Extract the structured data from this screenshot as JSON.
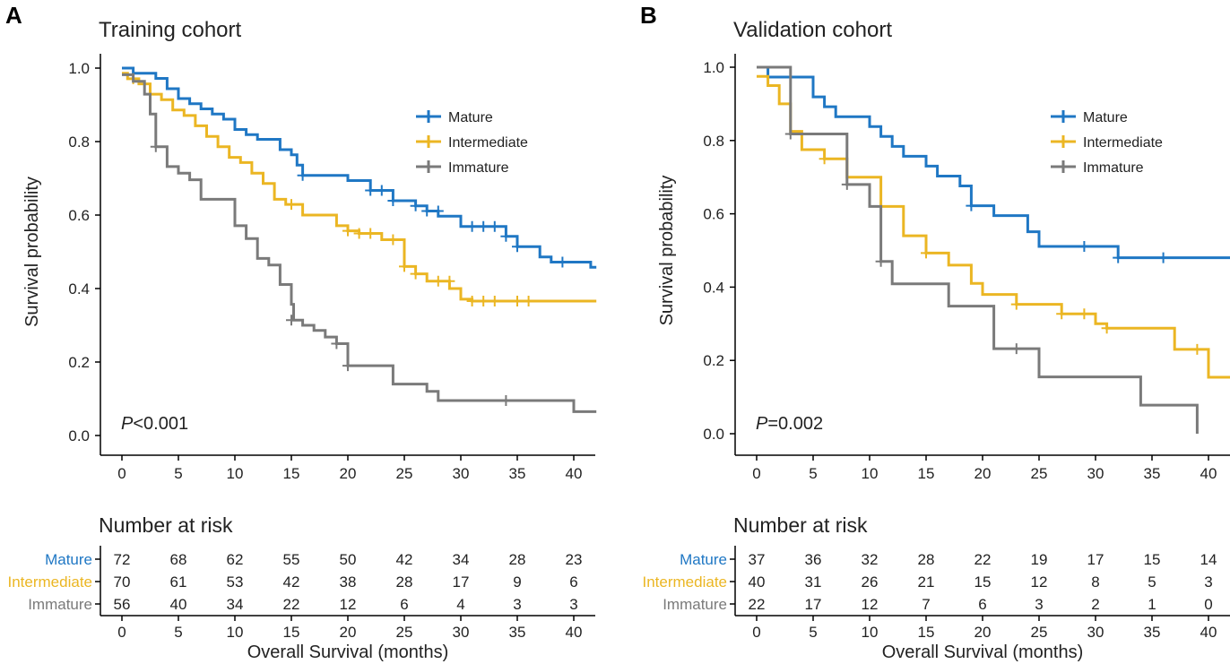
{
  "colors": {
    "mature": "#1f77c4",
    "intermediate": "#ebb623",
    "immature": "#7a7a7a",
    "axis": "#000000"
  },
  "panel_labels": [
    "A",
    "B"
  ],
  "risk_title": "Number at risk",
  "y_axis_label": "Survival probability",
  "x_axis_label": "Overall Survival (months)",
  "chart_data": [
    {
      "type": "line",
      "subtype": "kaplan-meier step",
      "panel": "A",
      "title": "Training cohort",
      "xlabel": "Overall Survival (months)",
      "ylabel": "Survival probability",
      "xlim": [
        0,
        42
      ],
      "ylim": [
        0,
        1.0
      ],
      "xticks": [
        "0",
        "5",
        "10",
        "15",
        "20",
        "25",
        "30",
        "35",
        "40"
      ],
      "yticks": [
        "0.0",
        "0.2",
        "0.4",
        "0.6",
        "0.8",
        "1.0"
      ],
      "legend": [
        "Mature",
        "Intermediate",
        "Immature"
      ],
      "legend_position": "top-right",
      "annotation": {
        "prefix": "P",
        "text": "<0.001"
      },
      "series": [
        {
          "name": "Mature",
          "color": "#1f77c4",
          "steps": [
            [
              0,
              1.0
            ],
            [
              1,
              0.986
            ],
            [
              3,
              0.972
            ],
            [
              4,
              0.944
            ],
            [
              5,
              0.917
            ],
            [
              6,
              0.903
            ],
            [
              7,
              0.889
            ],
            [
              8,
              0.875
            ],
            [
              9,
              0.861
            ],
            [
              10,
              0.833
            ],
            [
              11,
              0.819
            ],
            [
              12,
              0.806
            ],
            [
              14,
              0.778
            ],
            [
              15,
              0.764
            ],
            [
              15.5,
              0.736
            ],
            [
              16,
              0.708
            ],
            [
              20,
              0.694
            ],
            [
              22,
              0.667
            ],
            [
              24,
              0.639
            ],
            [
              26,
              0.625
            ],
            [
              27,
              0.611
            ],
            [
              28,
              0.597
            ],
            [
              30,
              0.569
            ],
            [
              34,
              0.542
            ],
            [
              35,
              0.514
            ],
            [
              37,
              0.486
            ],
            [
              38,
              0.472
            ],
            [
              41.5,
              0.458
            ]
          ],
          "end": 42,
          "censors": [
            [
              16,
              0.708
            ],
            [
              22,
              0.667
            ],
            [
              23,
              0.667
            ],
            [
              24,
              0.639
            ],
            [
              26,
              0.625
            ],
            [
              27,
              0.611
            ],
            [
              28,
              0.611
            ],
            [
              31,
              0.569
            ],
            [
              32,
              0.569
            ],
            [
              33,
              0.569
            ],
            [
              34,
              0.542
            ],
            [
              35,
              0.514
            ],
            [
              39,
              0.472
            ]
          ]
        },
        {
          "name": "Intermediate",
          "color": "#ebb623",
          "steps": [
            [
              0,
              0.986
            ],
            [
              0.5,
              0.971
            ],
            [
              1.5,
              0.957
            ],
            [
              2.5,
              0.929
            ],
            [
              3.5,
              0.914
            ],
            [
              4.5,
              0.886
            ],
            [
              5.5,
              0.871
            ],
            [
              6.5,
              0.843
            ],
            [
              7.5,
              0.814
            ],
            [
              8.5,
              0.786
            ],
            [
              9.5,
              0.757
            ],
            [
              10.5,
              0.743
            ],
            [
              11.5,
              0.714
            ],
            [
              12.5,
              0.686
            ],
            [
              13.5,
              0.643
            ],
            [
              14.5,
              0.629
            ],
            [
              16,
              0.6
            ],
            [
              19,
              0.571
            ],
            [
              20,
              0.557
            ],
            [
              21,
              0.55
            ],
            [
              23,
              0.533
            ],
            [
              25,
              0.46
            ],
            [
              26,
              0.44
            ],
            [
              27,
              0.42
            ],
            [
              29,
              0.4
            ],
            [
              30,
              0.371
            ],
            [
              31,
              0.366
            ]
          ],
          "end": 42,
          "censors": [
            [
              1,
              0.971
            ],
            [
              15,
              0.629
            ],
            [
              20,
              0.557
            ],
            [
              21,
              0.55
            ],
            [
              22,
              0.55
            ],
            [
              24,
              0.533
            ],
            [
              25,
              0.46
            ],
            [
              26,
              0.44
            ],
            [
              28,
              0.42
            ],
            [
              29,
              0.42
            ],
            [
              31,
              0.366
            ],
            [
              32,
              0.366
            ],
            [
              33,
              0.366
            ],
            [
              35,
              0.366
            ],
            [
              36,
              0.366
            ]
          ]
        },
        {
          "name": "Immature",
          "color": "#7a7a7a",
          "steps": [
            [
              0,
              0.982
            ],
            [
              1,
              0.964
            ],
            [
              2,
              0.929
            ],
            [
              2.5,
              0.875
            ],
            [
              3,
              0.786
            ],
            [
              4,
              0.732
            ],
            [
              5,
              0.714
            ],
            [
              6,
              0.696
            ],
            [
              7,
              0.643
            ],
            [
              10,
              0.571
            ],
            [
              11,
              0.536
            ],
            [
              12,
              0.482
            ],
            [
              13,
              0.464
            ],
            [
              14,
              0.411
            ],
            [
              15,
              0.357
            ],
            [
              15.2,
              0.314
            ],
            [
              16,
              0.3
            ],
            [
              17,
              0.286
            ],
            [
              18,
              0.268
            ],
            [
              19,
              0.25
            ],
            [
              20,
              0.19
            ],
            [
              24,
              0.14
            ],
            [
              27,
              0.12
            ],
            [
              28,
              0.095
            ],
            [
              40,
              0.065
            ]
          ],
          "end": 42,
          "censors": [
            [
              3,
              0.786
            ],
            [
              15,
              0.314
            ],
            [
              19,
              0.25
            ],
            [
              20,
              0.19
            ],
            [
              34,
              0.095
            ]
          ]
        }
      ],
      "risk_table": {
        "time_points": [
          "0",
          "5",
          "10",
          "15",
          "20",
          "25",
          "30",
          "35",
          "40"
        ],
        "rows": [
          {
            "label": "Mature",
            "color": "#1f77c4",
            "values": [
              "72",
              "68",
              "62",
              "55",
              "50",
              "42",
              "34",
              "28",
              "23"
            ]
          },
          {
            "label": "Intermediate",
            "color": "#ebb623",
            "values": [
              "70",
              "61",
              "53",
              "42",
              "38",
              "28",
              "17",
              "9",
              "6"
            ]
          },
          {
            "label": "Immature",
            "color": "#7a7a7a",
            "values": [
              "56",
              "40",
              "34",
              "22",
              "12",
              "6",
              "4",
              "3",
              "3"
            ]
          }
        ]
      }
    },
    {
      "type": "line",
      "subtype": "kaplan-meier step",
      "panel": "B",
      "title": "Validation cohort",
      "xlabel": "Overall Survival (months)",
      "ylabel": "Survival probability",
      "xlim": [
        0,
        42
      ],
      "ylim": [
        0,
        1.0
      ],
      "xticks": [
        "0",
        "5",
        "10",
        "15",
        "20",
        "25",
        "30",
        "35",
        "40"
      ],
      "yticks": [
        "0.0",
        "0.2",
        "0.4",
        "0.6",
        "0.8",
        "1.0"
      ],
      "legend": [
        "Mature",
        "Intermediate",
        "Immature"
      ],
      "legend_position": "top-right",
      "annotation": {
        "prefix": "P",
        "text": "=0.002"
      },
      "series": [
        {
          "name": "Mature",
          "color": "#1f77c4",
          "steps": [
            [
              0,
              1.0
            ],
            [
              1,
              0.973
            ],
            [
              5,
              0.919
            ],
            [
              6,
              0.892
            ],
            [
              7,
              0.865
            ],
            [
              10,
              0.838
            ],
            [
              11,
              0.811
            ],
            [
              12,
              0.784
            ],
            [
              13,
              0.757
            ],
            [
              15,
              0.73
            ],
            [
              16,
              0.703
            ],
            [
              18,
              0.676
            ],
            [
              19,
              0.622
            ],
            [
              21,
              0.595
            ],
            [
              24,
              0.551
            ],
            [
              25,
              0.511
            ],
            [
              32,
              0.48
            ]
          ],
          "end": 42,
          "censors": [
            [
              19,
              0.622
            ],
            [
              29,
              0.511
            ],
            [
              32,
              0.48
            ],
            [
              36,
              0.48
            ]
          ]
        },
        {
          "name": "Intermediate",
          "color": "#ebb623",
          "steps": [
            [
              0,
              0.975
            ],
            [
              1,
              0.95
            ],
            [
              2,
              0.9
            ],
            [
              3,
              0.825
            ],
            [
              4,
              0.775
            ],
            [
              6,
              0.75
            ],
            [
              8,
              0.7
            ],
            [
              11,
              0.62
            ],
            [
              13,
              0.54
            ],
            [
              15,
              0.493
            ],
            [
              17,
              0.46
            ],
            [
              19,
              0.41
            ],
            [
              20,
              0.38
            ],
            [
              23,
              0.353
            ],
            [
              27,
              0.327
            ],
            [
              30,
              0.3
            ],
            [
              31,
              0.288
            ],
            [
              37,
              0.23
            ],
            [
              40,
              0.154
            ]
          ],
          "end": 42,
          "censors": [
            [
              6,
              0.75
            ],
            [
              15,
              0.493
            ],
            [
              23,
              0.353
            ],
            [
              27,
              0.327
            ],
            [
              29,
              0.327
            ],
            [
              31,
              0.288
            ],
            [
              39,
              0.23
            ],
            [
              42,
              0.154
            ]
          ]
        },
        {
          "name": "Immature",
          "color": "#7a7a7a",
          "steps": [
            [
              0,
              1.0
            ],
            [
              3,
              0.818
            ],
            [
              8,
              0.68
            ],
            [
              10,
              0.62
            ],
            [
              11,
              0.47
            ],
            [
              12,
              0.409
            ],
            [
              17,
              0.348
            ],
            [
              21,
              0.232
            ],
            [
              25,
              0.155
            ],
            [
              34,
              0.078
            ]
          ],
          "end": 39,
          "drop_to": 0.0,
          "censors": [
            [
              3,
              0.818
            ],
            [
              8,
              0.68
            ],
            [
              11,
              0.47
            ],
            [
              23,
              0.232
            ]
          ]
        }
      ],
      "risk_table": {
        "time_points": [
          "0",
          "5",
          "10",
          "15",
          "20",
          "25",
          "30",
          "35",
          "40"
        ],
        "rows": [
          {
            "label": "Mature",
            "color": "#1f77c4",
            "values": [
              "37",
              "36",
              "32",
              "28",
              "22",
              "19",
              "17",
              "15",
              "14"
            ]
          },
          {
            "label": "Intermediate",
            "color": "#ebb623",
            "values": [
              "40",
              "31",
              "26",
              "21",
              "15",
              "12",
              "8",
              "5",
              "3"
            ]
          },
          {
            "label": "Immature",
            "color": "#7a7a7a",
            "values": [
              "22",
              "17",
              "12",
              "7",
              "6",
              "3",
              "2",
              "1",
              "0"
            ]
          }
        ]
      }
    }
  ]
}
